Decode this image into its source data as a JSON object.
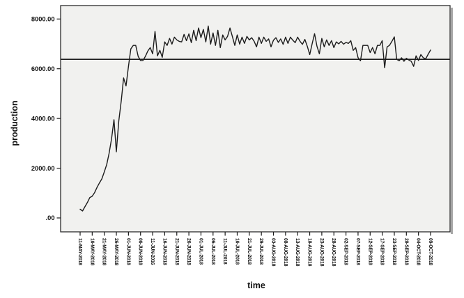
{
  "figure": {
    "background": "#ffffff"
  },
  "chart_data": {
    "type": "line",
    "title": "",
    "xlabel": "time",
    "ylabel": "production",
    "grid": false,
    "legend": "none",
    "plot_background": "#f1f1ef",
    "frame_color": "#2b2b2b",
    "shadow_color": "#a6a6a6",
    "y_tick_labels": [
      ".00",
      "2000.00",
      "4000.00",
      "6000.00",
      "8000.00"
    ],
    "y_tick_values": [
      0,
      2000,
      4000,
      6000,
      8000
    ],
    "ylim": [
      -570,
      8540
    ],
    "reference_line_value": 6380,
    "points_per_x_tick": 5,
    "x_tick_labels": [
      "11-MAY-2018",
      "16-MAY-2018",
      "21-MAY-2018",
      "26-MAY-2018",
      "01-JUN-2018",
      "06-JUN-2018",
      "11-JUN-2016",
      "16-JUN-2018",
      "21-JUN-2018",
      "26-JUN-2018",
      "01-JUL-2018",
      "06-JUL-2018",
      "11-JUL-2018",
      "16-JUL-2018",
      "21-JUL-2018",
      "29-JUL-2018",
      "03-AUG-2018",
      "08-AUG-2018",
      "13-AUG-2018",
      "18-AUG-2018",
      "23-AUG-2018",
      "28-AUG-2018",
      "02-SEP-2018",
      "07-SEP-2018",
      "12-SEP-2018",
      "17-SEP-2018",
      "23-SEP-2018",
      "28-SEP-2018",
      "04-OCT-2018",
      "09-OCT-2018"
    ],
    "series": [
      {
        "name": "production",
        "color": "#1c1c1c",
        "values": [
          350,
          280,
          450,
          620,
          820,
          870,
          1020,
          1230,
          1410,
          1570,
          1850,
          2150,
          2600,
          3180,
          3950,
          2660,
          3900,
          4700,
          5630,
          5310,
          6100,
          6800,
          6940,
          6940,
          6500,
          6330,
          6330,
          6500,
          6710,
          6850,
          6600,
          7500,
          6520,
          6740,
          6460,
          7080,
          6940,
          7220,
          6990,
          7270,
          7160,
          7100,
          7080,
          7380,
          7130,
          7400,
          7050,
          7550,
          7130,
          7640,
          7250,
          7580,
          7080,
          7720,
          6990,
          7440,
          6940,
          7550,
          6850,
          7360,
          7160,
          7300,
          7640,
          7300,
          6940,
          7360,
          6990,
          7270,
          7020,
          7300,
          7160,
          7250,
          7100,
          6880,
          7270,
          7020,
          7270,
          7100,
          7200,
          6880,
          7150,
          7250,
          7060,
          7200,
          6980,
          7270,
          7020,
          7270,
          7150,
          7050,
          7270,
          7100,
          6980,
          7180,
          6900,
          6570,
          7000,
          7410,
          6900,
          6600,
          7220,
          6880,
          7160,
          6940,
          7130,
          6850,
          7080,
          7000,
          7100,
          6990,
          7060,
          7020,
          7130,
          6740,
          6850,
          6450,
          6320,
          6940,
          6940,
          6940,
          6650,
          6850,
          6600,
          6940,
          6940,
          7130,
          6040,
          6880,
          6940,
          7100,
          7280,
          6380,
          6320,
          6440,
          6300,
          6420,
          6350,
          6300,
          6100,
          6520,
          6330,
          6570,
          6440,
          6400,
          6580,
          6750
        ]
      }
    ]
  }
}
